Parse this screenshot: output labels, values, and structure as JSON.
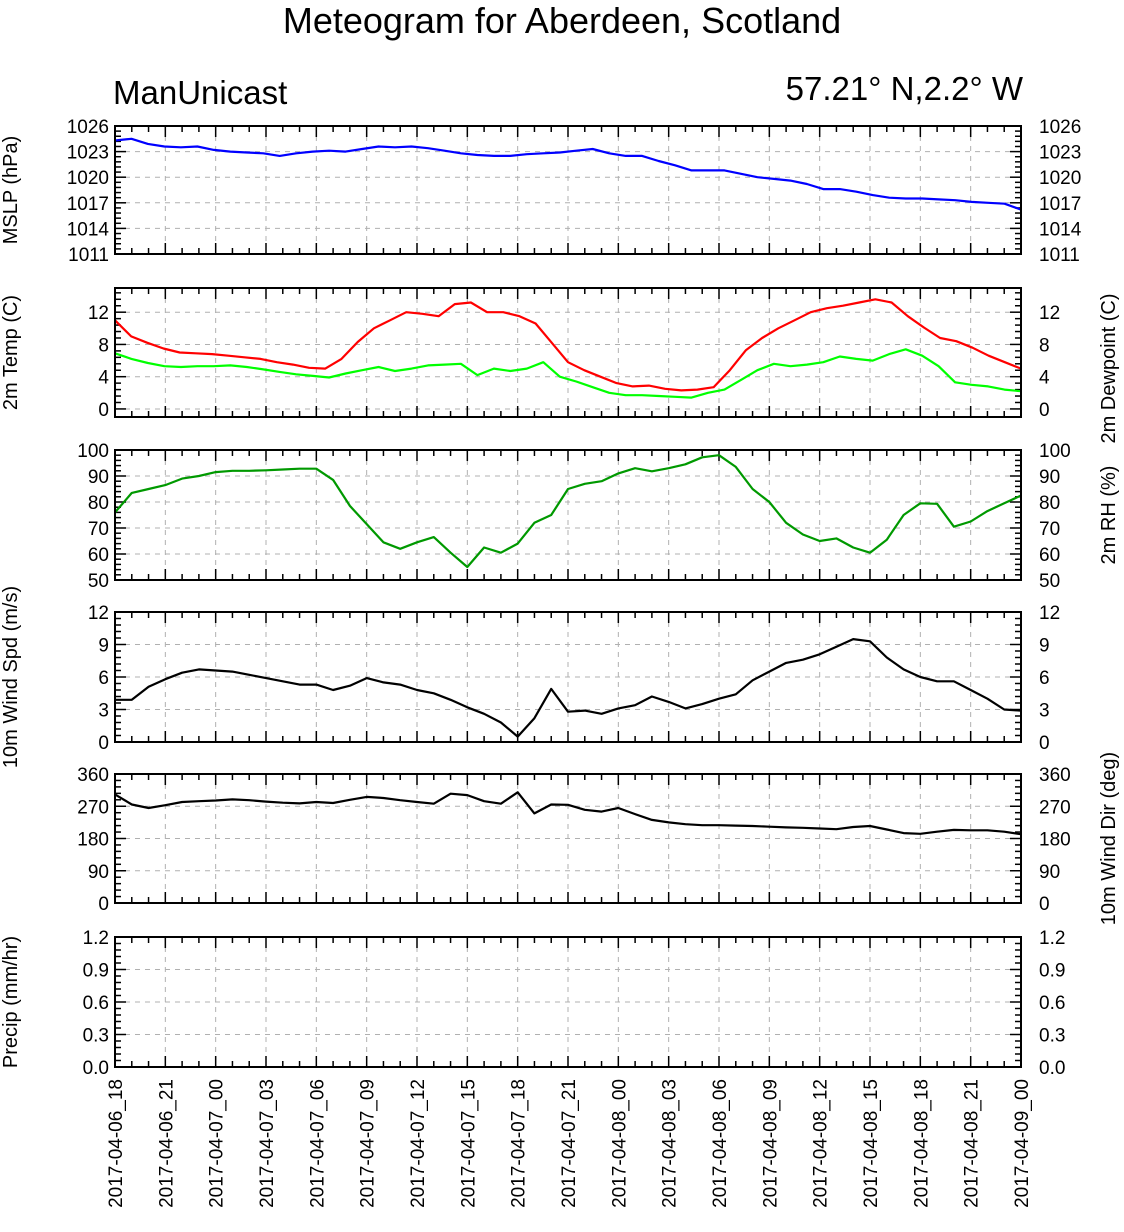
{
  "title": "Meteogram for Aberdeen, Scotland",
  "subtitle_left": "ManUnicast",
  "subtitle_right": "57.21° N,2.2° W",
  "x_tick_labels": [
    "2017-04-06_18",
    "2017-04-06_21",
    "2017-04-07_00",
    "2017-04-07_03",
    "2017-04-07_06",
    "2017-04-07_09",
    "2017-04-07_12",
    "2017-04-07_15",
    "2017-04-07_18",
    "2017-04-07_21",
    "2017-04-08_00",
    "2017-04-08_03",
    "2017-04-08_06",
    "2017-04-08_09",
    "2017-04-08_12",
    "2017-04-08_15",
    "2017-04-08_18",
    "2017-04-08_21",
    "2017-04-09_00"
  ],
  "chart_data": [
    {
      "type": "line",
      "ylabel": "MSLP (hPa)",
      "ylim": [
        1011,
        1026
      ],
      "yticks": [
        1011,
        1014,
        1017,
        1020,
        1023,
        1026
      ],
      "yticklabels": [
        "1011",
        "1014",
        "1017",
        "1020",
        "1023",
        "1026"
      ],
      "series": [
        {
          "color": "#0000ff",
          "values": [
            1024.3,
            1024.5,
            1023.9,
            1023.6,
            1023.5,
            1023.6,
            1023.2,
            1023.0,
            1022.9,
            1022.8,
            1022.5,
            1022.8,
            1023.0,
            1023.1,
            1023.0,
            1023.3,
            1023.6,
            1023.5,
            1023.6,
            1023.4,
            1023.1,
            1022.8,
            1022.6,
            1022.5,
            1022.5,
            1022.7,
            1022.8,
            1022.9,
            1023.1,
            1023.3,
            1022.8,
            1022.5,
            1022.5,
            1021.9,
            1021.4,
            1020.8,
            1020.8,
            1020.8,
            1020.4,
            1020.0,
            1019.8,
            1019.6,
            1019.2,
            1018.6,
            1018.6,
            1018.3,
            1017.9,
            1017.6,
            1017.5,
            1017.5,
            1017.4,
            1017.3,
            1017.1,
            1017.0,
            1016.9,
            1016.2
          ]
        }
      ]
    },
    {
      "type": "line",
      "ylabel": "2m Temp (C)",
      "ylabel_right": "2m Dewpoint (C)",
      "ylim": [
        -1,
        15
      ],
      "yticks": [
        0,
        4,
        8,
        12
      ],
      "yticklabels": [
        "0",
        "4",
        "8",
        "12"
      ],
      "series": [
        {
          "color": "#ff0000",
          "values": [
            11.0,
            9.0,
            8.2,
            7.5,
            7.0,
            6.9,
            6.8,
            6.6,
            6.4,
            6.2,
            5.8,
            5.5,
            5.1,
            5.0,
            6.2,
            8.3,
            10.0,
            11.0,
            12.0,
            11.8,
            11.5,
            13.0,
            13.2,
            12.0,
            12.0,
            11.5,
            10.6,
            8.2,
            5.8,
            4.8,
            4.0,
            3.2,
            2.8,
            2.9,
            2.5,
            2.3,
            2.4,
            2.7,
            4.8,
            7.3,
            8.8,
            10.0,
            11.0,
            12.0,
            12.5,
            12.8,
            13.2,
            13.6,
            13.2,
            11.5,
            10.1,
            8.8,
            8.4,
            7.6,
            6.6,
            5.8,
            5.0
          ]
        },
        {
          "color": "#00ff00",
          "values": [
            6.9,
            6.2,
            5.7,
            5.3,
            5.2,
            5.3,
            5.3,
            5.4,
            5.2,
            4.9,
            4.6,
            4.3,
            4.1,
            3.9,
            4.4,
            4.8,
            5.2,
            4.7,
            5.0,
            5.4,
            5.5,
            5.6,
            4.2,
            5.0,
            4.7,
            5.0,
            5.8,
            4.0,
            3.4,
            2.7,
            2.0,
            1.7,
            1.7,
            1.6,
            1.5,
            1.4,
            2.0,
            2.4,
            3.6,
            4.8,
            5.6,
            5.3,
            5.5,
            5.8,
            6.5,
            6.2,
            6.0,
            6.8,
            7.4,
            6.6,
            5.3,
            3.3,
            3.0,
            2.8,
            2.4,
            2.2
          ]
        }
      ]
    },
    {
      "type": "line",
      "ylabel": "2m RH (%)",
      "ylim": [
        50,
        100
      ],
      "yticks": [
        50,
        60,
        70,
        80,
        90,
        100
      ],
      "yticklabels": [
        "50",
        "60",
        "70",
        "80",
        "90",
        "100"
      ],
      "series": [
        {
          "color": "#009900",
          "values": [
            76,
            83.5,
            85,
            86.5,
            89,
            90,
            91.5,
            92,
            92,
            92.2,
            92.5,
            92.8,
            92.8,
            88.5,
            78.5,
            71.5,
            64.5,
            62,
            64.5,
            66.5,
            60.5,
            55,
            62.5,
            60.5,
            64,
            72,
            75,
            85,
            87,
            88,
            91,
            93,
            91.8,
            93,
            94.5,
            97.2,
            98,
            93.5,
            85,
            80,
            72,
            67.5,
            65,
            66,
            62.5,
            60.5,
            65.5,
            75,
            79.5,
            79.3,
            70.5,
            72.5,
            76.5,
            79.5,
            82.5
          ]
        }
      ]
    },
    {
      "type": "line",
      "ylabel": "10m Wind Spd (m/s)",
      "ylim": [
        0,
        12
      ],
      "yticks": [
        0,
        3,
        6,
        9,
        12
      ],
      "yticklabels": [
        "0",
        "3",
        "6",
        "9",
        "12"
      ],
      "series": [
        {
          "color": "#000000",
          "values": [
            3.9,
            3.9,
            5.1,
            5.8,
            6.4,
            6.7,
            6.6,
            6.5,
            6.2,
            5.9,
            5.6,
            5.3,
            5.3,
            4.8,
            5.2,
            5.9,
            5.5,
            5.3,
            4.8,
            4.5,
            3.9,
            3.2,
            2.6,
            1.8,
            0.5,
            2.2,
            4.9,
            2.8,
            2.9,
            2.6,
            3.1,
            3.4,
            4.2,
            3.7,
            3.1,
            3.5,
            4.0,
            4.4,
            5.7,
            6.5,
            7.3,
            7.6,
            8.1,
            8.8,
            9.5,
            9.3,
            7.8,
            6.7,
            6.0,
            5.6,
            5.6,
            4.8,
            4.0,
            3.0,
            2.9
          ]
        }
      ]
    },
    {
      "type": "line",
      "ylabel": "10m Wind Dir (deg)",
      "ylim": [
        0,
        360
      ],
      "yticks": [
        0,
        90,
        180,
        270,
        360
      ],
      "yticklabels": [
        "0",
        "90",
        "180",
        "270",
        "360"
      ],
      "series": [
        {
          "color": "#000000",
          "values": [
            303,
            275,
            265,
            273,
            282,
            284,
            286,
            289,
            287,
            283,
            280,
            278,
            282,
            279,
            288,
            296,
            293,
            287,
            282,
            277,
            305,
            301,
            284,
            277,
            309,
            250,
            275,
            274,
            260,
            255,
            265,
            248,
            232,
            225,
            220,
            217,
            217,
            216,
            215,
            213,
            211,
            210,
            208,
            206,
            212,
            215,
            205,
            195,
            193,
            199,
            204,
            203,
            203,
            199,
            192
          ]
        }
      ]
    },
    {
      "type": "line",
      "ylabel": "Precip (mm/hr)",
      "ylim": [
        0,
        1.2
      ],
      "yticks": [
        0,
        0.3,
        0.6,
        0.9,
        1.2
      ],
      "yticklabels": [
        "0.0",
        "0.3",
        "0.6",
        "0.9",
        "1.2"
      ],
      "series": []
    }
  ]
}
